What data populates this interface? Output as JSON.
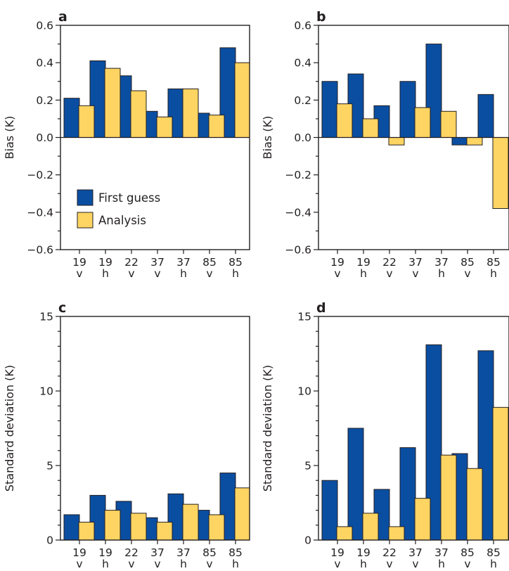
{
  "colors": {
    "first_guess": "#0a4ea2",
    "analysis": "#fed462",
    "ink": "#231f20"
  },
  "legend": {
    "first_guess_label": "First guess",
    "analysis_label": "Analysis"
  },
  "chart_data": [
    {
      "panel": "a",
      "type": "bar",
      "ylabel": "Bias (K)",
      "ylim": [
        -0.6,
        0.6
      ],
      "yticks": [
        -0.6,
        -0.4,
        -0.2,
        0.0,
        0.2,
        0.4,
        0.6
      ],
      "ytick_labels": [
        "−0.6",
        "−0.4",
        "−0.2",
        "0.0",
        "0.2",
        "0.4",
        "0.6"
      ],
      "categories": [
        [
          "19",
          "v"
        ],
        [
          "19",
          "h"
        ],
        [
          "22",
          "v"
        ],
        [
          "37",
          "v"
        ],
        [
          "37",
          "h"
        ],
        [
          "85",
          "v"
        ],
        [
          "85",
          "h"
        ]
      ],
      "series": [
        {
          "name": "First guess",
          "values": [
            0.21,
            0.41,
            0.33,
            0.14,
            0.26,
            0.13,
            0.48
          ]
        },
        {
          "name": "Analysis",
          "values": [
            0.17,
            0.37,
            0.25,
            0.11,
            0.26,
            0.12,
            0.4
          ]
        }
      ],
      "legend": "lower-left"
    },
    {
      "panel": "b",
      "type": "bar",
      "ylabel": "Bias (K)",
      "ylim": [
        -0.6,
        0.6
      ],
      "yticks": [
        -0.6,
        -0.4,
        -0.2,
        0.0,
        0.2,
        0.4,
        0.6
      ],
      "ytick_labels": [
        "−0.6",
        "−0.4",
        "−0.2",
        "0.0",
        "0.2",
        "0.4",
        "0.6"
      ],
      "categories": [
        [
          "19",
          "v"
        ],
        [
          "19",
          "h"
        ],
        [
          "22",
          "v"
        ],
        [
          "37",
          "v"
        ],
        [
          "37",
          "h"
        ],
        [
          "85",
          "v"
        ],
        [
          "85",
          "h"
        ]
      ],
      "series": [
        {
          "name": "First guess",
          "values": [
            0.3,
            0.34,
            0.17,
            0.3,
            0.5,
            -0.04,
            0.23
          ]
        },
        {
          "name": "Analysis",
          "values": [
            0.18,
            0.1,
            -0.04,
            0.16,
            0.14,
            -0.04,
            -0.38
          ]
        }
      ]
    },
    {
      "panel": "c",
      "type": "bar",
      "ylabel": "Standard deviation (K)",
      "ylim": [
        0,
        15
      ],
      "yticks": [
        0,
        5,
        10,
        15
      ],
      "ytick_labels": [
        "0",
        "5",
        "10",
        "15"
      ],
      "categories": [
        [
          "19",
          "v"
        ],
        [
          "19",
          "h"
        ],
        [
          "22",
          "v"
        ],
        [
          "37",
          "v"
        ],
        [
          "37",
          "h"
        ],
        [
          "85",
          "v"
        ],
        [
          "85",
          "h"
        ]
      ],
      "series": [
        {
          "name": "First guess",
          "values": [
            1.7,
            3.0,
            2.6,
            1.5,
            3.1,
            2.0,
            4.5
          ]
        },
        {
          "name": "Analysis",
          "values": [
            1.2,
            2.0,
            1.8,
            1.2,
            2.4,
            1.7,
            3.5
          ]
        }
      ]
    },
    {
      "panel": "d",
      "type": "bar",
      "ylabel": "Standard deviation (K)",
      "ylim": [
        0,
        15
      ],
      "yticks": [
        0,
        5,
        10,
        15
      ],
      "ytick_labels": [
        "0",
        "5",
        "10",
        "15"
      ],
      "categories": [
        [
          "19",
          "v"
        ],
        [
          "19",
          "h"
        ],
        [
          "22",
          "v"
        ],
        [
          "37",
          "v"
        ],
        [
          "37",
          "h"
        ],
        [
          "85",
          "v"
        ],
        [
          "85",
          "h"
        ]
      ],
      "series": [
        {
          "name": "First guess",
          "values": [
            4.0,
            7.5,
            3.4,
            6.2,
            13.1,
            5.8,
            12.7
          ]
        },
        {
          "name": "Analysis",
          "values": [
            0.9,
            1.8,
            0.9,
            2.8,
            5.7,
            4.8,
            8.9
          ]
        }
      ]
    }
  ]
}
